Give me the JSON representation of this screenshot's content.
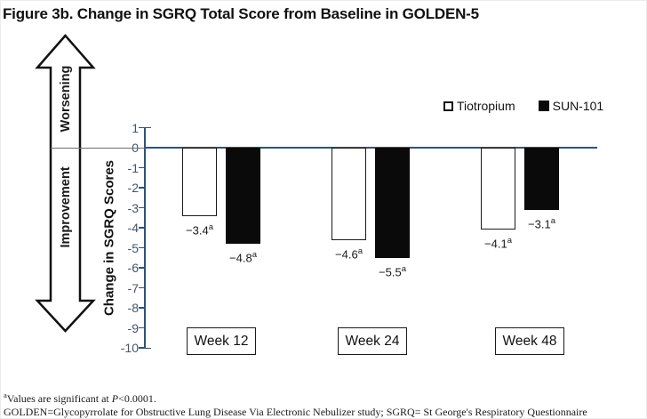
{
  "figure": {
    "title": "Figure 3b. Change in SGRQ Total Score from Baseline in GOLDEN-5"
  },
  "axis_arrow": {
    "top_label": "Worsening",
    "bottom_label": "Improvement"
  },
  "chart_data": {
    "type": "bar",
    "title": "Figure 3b. Change in SGRQ Total Score from Baseline in GOLDEN-5",
    "categories": [
      "Week 12",
      "Week 24",
      "Week 48"
    ],
    "series": [
      {
        "name": "Tiotropium",
        "values": [
          -3.4,
          -4.6,
          -4.1
        ],
        "fill": "#ffffff",
        "border": "#1a1a1a"
      },
      {
        "name": "SUN-101",
        "values": [
          -4.8,
          -5.5,
          -3.1
        ],
        "fill": "#0a0a0a",
        "border": "#0a0a0a"
      }
    ],
    "data_labels": {
      "series_0": [
        "−3.4",
        "−4.6",
        "−4.1"
      ],
      "series_1": [
        "−4.8",
        "−5.5",
        "−3.1"
      ],
      "superscript": "a"
    },
    "ylabel": "Change in SGRQ Scores",
    "ylim": [
      -10,
      1
    ],
    "ytick_step": 1,
    "yticks": [
      1,
      0,
      -1,
      -2,
      -3,
      -4,
      -5,
      -6,
      -7,
      -8,
      -9,
      -10
    ],
    "legend_position": "top-right",
    "grid": false,
    "colors": {
      "axis": "#2f5377",
      "tick_label": "#44546A",
      "bar_black": "#0a0a0a",
      "bar_white": "#ffffff"
    }
  },
  "footnotes": {
    "line1_sup": "a",
    "line1_pre": "Values are significant at ",
    "line1_italic": "P",
    "line1_post": "<0.0001.",
    "line2": "GOLDEN=Glycopyrrolate for Obstructive Lung Disease Via Electronic Nebulizer study; SGRQ= St George's Respiratory Questionnaire"
  }
}
